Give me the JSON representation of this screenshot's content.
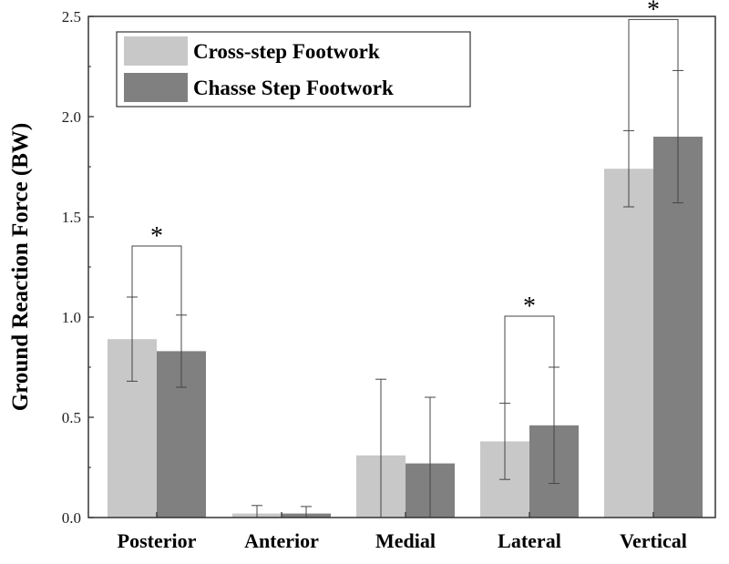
{
  "chart_data": {
    "type": "bar",
    "title": "",
    "xlabel": "",
    "ylabel": "Ground Reaction Force (BW)",
    "ylim": [
      0,
      2.5
    ],
    "yticks": [
      "0.0",
      "0.5",
      "1.0",
      "1.5",
      "2.0",
      "2.5"
    ],
    "categories": [
      "Posterior",
      "Anterior",
      "Medial",
      "Lateral",
      "Vertical"
    ],
    "series": [
      {
        "name": "Cross-step Footwork",
        "color": "#c8c8c8",
        "values": [
          0.89,
          0.02,
          0.31,
          0.38,
          1.74
        ],
        "errors": [
          0.21,
          0.04,
          0.38,
          0.19,
          0.19
        ]
      },
      {
        "name": "Chasse Step Footwork",
        "color": "#808080",
        "values": [
          0.83,
          0.02,
          0.27,
          0.46,
          1.9
        ],
        "errors": [
          0.18,
          0.035,
          0.33,
          0.29,
          0.33
        ]
      }
    ],
    "significance": [
      {
        "category": "Posterior",
        "label": "*"
      },
      {
        "category": "Lateral",
        "label": "*"
      },
      {
        "category": "Vertical",
        "label": "*"
      }
    ],
    "legend_position": "top-left"
  }
}
